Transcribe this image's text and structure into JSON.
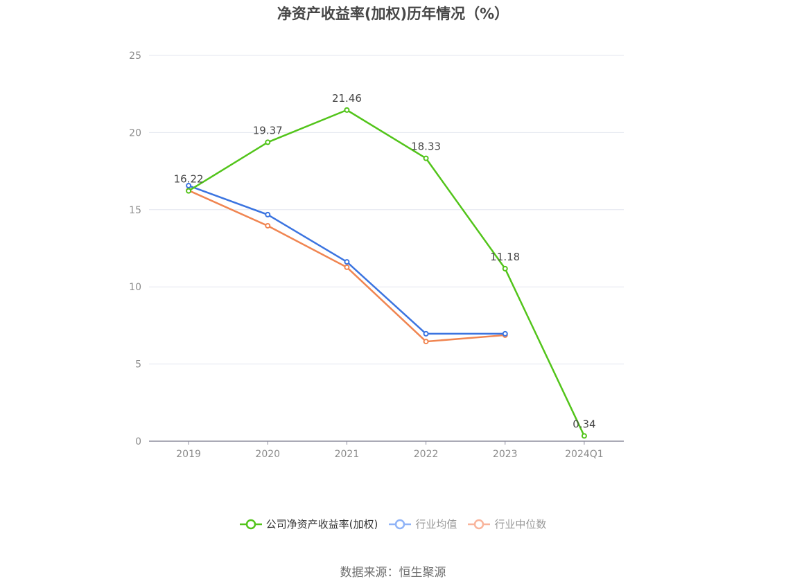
{
  "title": "净资产收益率(加权)历年情况（%）",
  "source": "数据来源：恒生聚源",
  "legend": [
    {
      "label": "公司净资产收益率(加权)",
      "color": "#52c41a",
      "text_color": "#333333"
    },
    {
      "label": "行业均值",
      "color": "#8fb3f7",
      "text_color": "#999999"
    },
    {
      "label": "行业中位数",
      "color": "#f9b49b",
      "text_color": "#999999"
    }
  ],
  "chart_data": {
    "type": "line",
    "title": "净资产收益率(加权)历年情况（%）",
    "xlabel": "",
    "ylabel": "",
    "categories": [
      "2019",
      "2020",
      "2021",
      "2022",
      "2023",
      "2024Q1"
    ],
    "ylim": [
      0,
      25
    ],
    "yticks": [
      0,
      5,
      10,
      15,
      20,
      25
    ],
    "grid": true,
    "legend_position": "bottom",
    "series": [
      {
        "name": "公司净资产收益率(加权)",
        "color": "#52c41a",
        "values": [
          16.22,
          19.37,
          21.46,
          18.33,
          11.18,
          0.34
        ],
        "labels_shown": true
      },
      {
        "name": "行业均值",
        "color": "#3b74e0",
        "values": [
          16.56,
          14.68,
          11.62,
          6.96,
          6.96,
          null
        ],
        "labels_shown": false
      },
      {
        "name": "行业中位数",
        "color": "#f08551",
        "values": [
          16.25,
          13.96,
          11.27,
          6.46,
          6.87,
          null
        ],
        "labels_shown": false
      }
    ]
  }
}
